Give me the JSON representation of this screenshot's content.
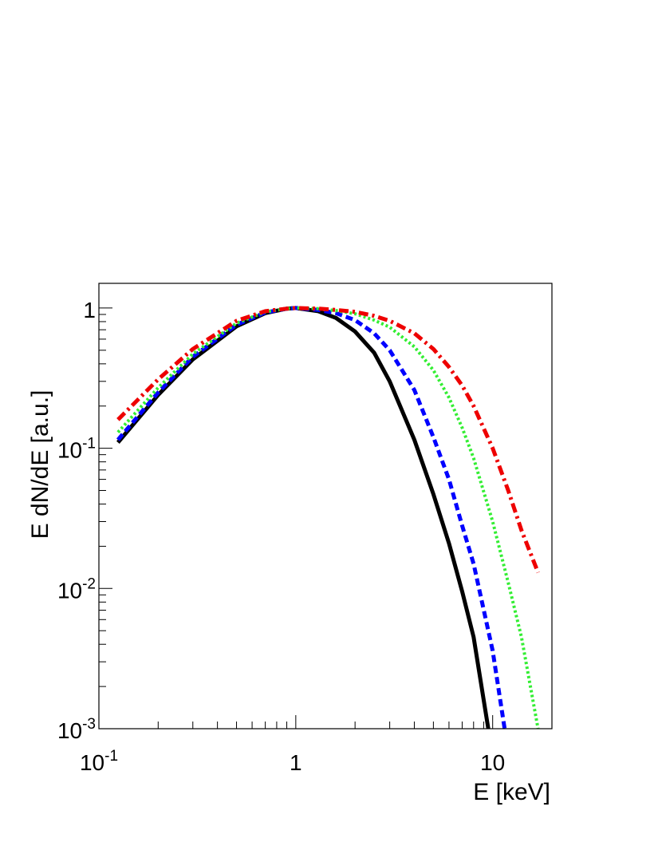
{
  "chart_data": {
    "type": "line",
    "xlabel": "E [keV]",
    "ylabel": "E dN/dE [a.u.]",
    "x_scale": "log",
    "y_scale": "log",
    "xlim": [
      0.1,
      20
    ],
    "ylim": [
      0.001,
      1.5
    ],
    "x_ticks": [
      {
        "value": 0.1,
        "label": "10",
        "exp": "-1"
      },
      {
        "value": 1,
        "label": "1",
        "exp": ""
      },
      {
        "value": 10,
        "label": "10",
        "exp": ""
      }
    ],
    "y_ticks": [
      {
        "value": 0.001,
        "label": "10",
        "exp": "-3"
      },
      {
        "value": 0.01,
        "label": "10",
        "exp": "-2"
      },
      {
        "value": 0.1,
        "label": "10",
        "exp": "-1"
      },
      {
        "value": 1,
        "label": "1",
        "exp": ""
      }
    ],
    "grid": false,
    "legend": "none",
    "series": [
      {
        "color": "#000000",
        "style": "solid",
        "x": [
          0.125,
          0.2,
          0.3,
          0.5,
          0.7,
          0.9,
          1.0,
          1.3,
          1.6,
          2.0,
          2.5,
          3.0,
          4.0,
          5.0,
          6.0,
          7.0,
          8.0,
          9.5
        ],
        "y": [
          0.11,
          0.24,
          0.43,
          0.74,
          0.92,
          0.99,
          1.0,
          0.95,
          0.85,
          0.68,
          0.48,
          0.3,
          0.115,
          0.047,
          0.021,
          0.0095,
          0.0045,
          0.001
        ]
      },
      {
        "color": "#0000ff",
        "style": "dashed",
        "x": [
          0.125,
          0.2,
          0.3,
          0.5,
          0.7,
          0.9,
          1.0,
          1.3,
          1.6,
          2.0,
          2.5,
          3.0,
          4.0,
          5.0,
          6.0,
          7.0,
          8.0,
          10.0,
          11.5
        ],
        "y": [
          0.115,
          0.25,
          0.45,
          0.76,
          0.93,
          0.99,
          1.0,
          0.97,
          0.92,
          0.82,
          0.66,
          0.5,
          0.26,
          0.12,
          0.06,
          0.028,
          0.015,
          0.0036,
          0.001
        ]
      },
      {
        "color": "#33ee33",
        "style": "dotted",
        "x": [
          0.125,
          0.2,
          0.3,
          0.5,
          0.7,
          0.9,
          1.0,
          1.3,
          1.6,
          2.0,
          2.5,
          3.0,
          4.0,
          5.0,
          6.0,
          7.0,
          8.0,
          10.0,
          12.0,
          14.0,
          17.0
        ],
        "y": [
          0.13,
          0.27,
          0.47,
          0.78,
          0.94,
          0.99,
          1.0,
          0.99,
          0.96,
          0.91,
          0.82,
          0.73,
          0.53,
          0.36,
          0.23,
          0.14,
          0.085,
          0.03,
          0.011,
          0.0045,
          0.001
        ]
      },
      {
        "color": "#ee0000",
        "style": "dashdot",
        "x": [
          0.125,
          0.2,
          0.3,
          0.5,
          0.7,
          0.9,
          1.0,
          1.3,
          1.6,
          2.0,
          2.5,
          3.0,
          4.0,
          5.0,
          6.0,
          7.0,
          8.0,
          10.0,
          12.0,
          14.0,
          17.0
        ],
        "y": [
          0.16,
          0.31,
          0.51,
          0.81,
          0.95,
          0.99,
          1.0,
          0.99,
          0.97,
          0.94,
          0.88,
          0.81,
          0.66,
          0.51,
          0.38,
          0.28,
          0.2,
          0.1,
          0.05,
          0.026,
          0.013
        ]
      }
    ]
  }
}
